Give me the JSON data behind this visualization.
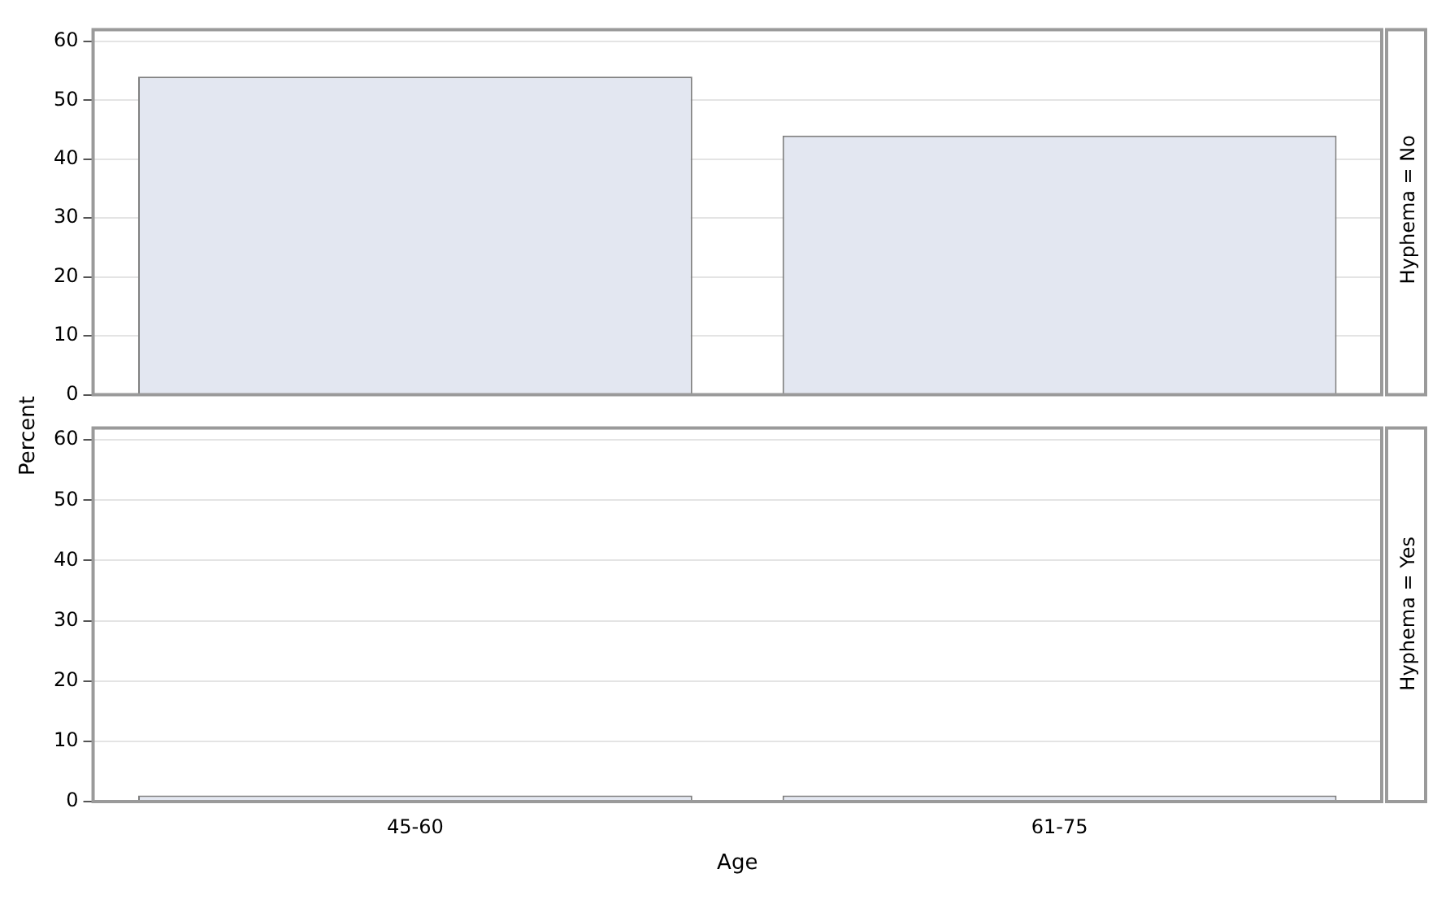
{
  "chart_data": [
    {
      "type": "bar",
      "annotations": [
        "Hyphema = No"
      ],
      "ylabel": "Percent",
      "categories": [
        null,
        null
      ],
      "values": [
        54,
        44
      ],
      "color": "#e3e7f1",
      "ylim": [
        0,
        62
      ],
      "yticks": [
        0,
        10,
        20,
        30,
        40,
        50,
        60
      ],
      "grid": "y",
      "tick_labels": "y"
    },
    {
      "type": "bar",
      "annotations": [
        "Hyphema = Yes"
      ],
      "xlabel": "Age",
      "categories": [
        "45-60",
        "61-75"
      ],
      "values": [
        1,
        1
      ],
      "color": "#e3e7f1",
      "ylim": [
        0,
        62
      ],
      "yticks": [
        0,
        10,
        20,
        30,
        40,
        50,
        60
      ],
      "grid": "y"
    }
  ]
}
